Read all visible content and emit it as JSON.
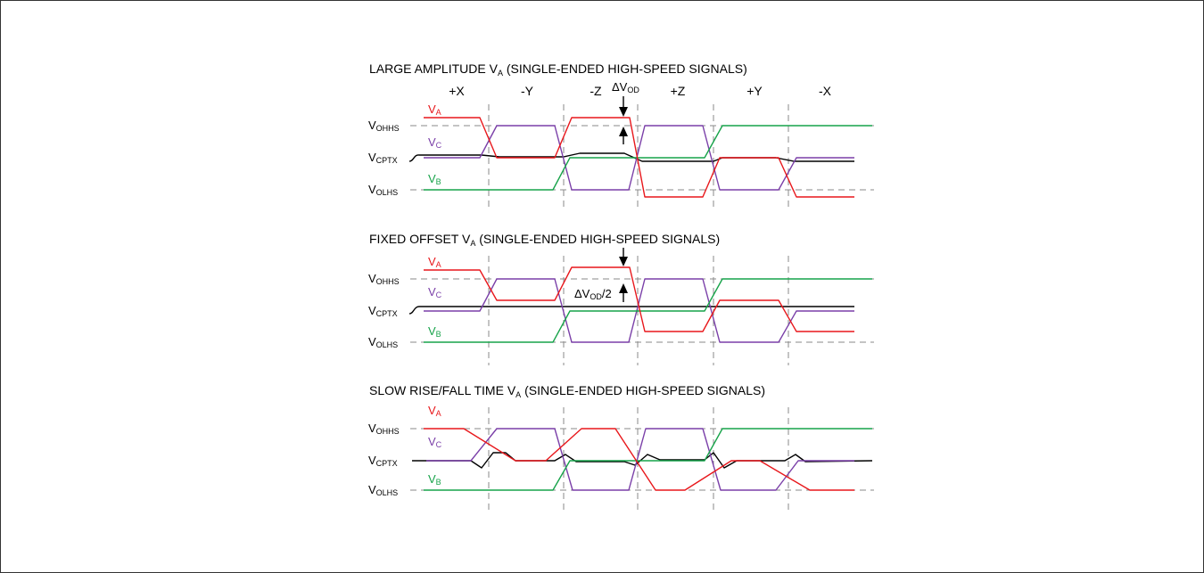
{
  "colors": {
    "va": "#e8171b",
    "vb": "#17a34a",
    "vc": "#7a3fa8",
    "common": "#000000",
    "grid": "#8a8a8a"
  },
  "phases": [
    "+X",
    "-Y",
    "-Z",
    "+Z",
    "+Y",
    "-X"
  ],
  "levels": {
    "vohhs": "OHHS",
    "vcptx": "CPTX",
    "volhs": "OLHS",
    "prefix": "V"
  },
  "signals": {
    "va_sub": "A",
    "vb_sub": "B",
    "vc_sub": "C",
    "prefix": "V"
  },
  "panels": [
    {
      "title": {
        "pre": "LARGE AMPLITUDE V",
        "sub": "A",
        "post": " (SINGLE-ENDED HIGH-SPEED SIGNALS)"
      },
      "annotation": {
        "delta": "ΔV",
        "sub": "OD",
        "suffix": ""
      }
    },
    {
      "title": {
        "pre": "FIXED OFFSET V",
        "sub": "A",
        "post": " (SINGLE-ENDED HIGH-SPEED SIGNALS)"
      },
      "annotation": {
        "delta": "ΔV",
        "sub": "OD",
        "suffix": "/2"
      }
    },
    {
      "title": {
        "pre": "SLOW RISE/FALL TIME V",
        "sub": "A",
        "post": " (SINGLE-ENDED HIGH-SPEED SIGNALS)"
      }
    }
  ]
}
